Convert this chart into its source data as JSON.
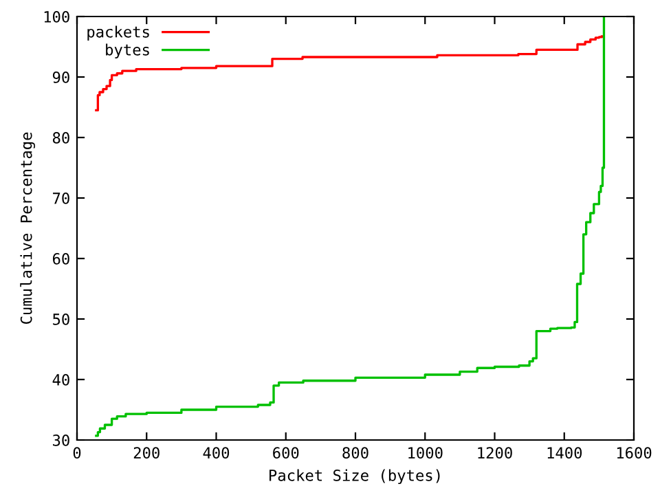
{
  "chart_data": {
    "type": "step",
    "xlabel": "Packet Size (bytes)",
    "ylabel": "Cumulative Percentage",
    "xlim": [
      0,
      1600
    ],
    "ylim": [
      30,
      100
    ],
    "xticks": [
      0,
      200,
      400,
      600,
      800,
      1000,
      1200,
      1400,
      1600
    ],
    "yticks": [
      30,
      40,
      50,
      60,
      70,
      80,
      90,
      100
    ],
    "legend": "top left",
    "grid": false,
    "series": [
      {
        "name": "packets",
        "color": "#ff0000",
        "x": [
          55,
          60,
          65,
          75,
          85,
          95,
          100,
          115,
          130,
          170,
          300,
          400,
          561,
          648,
          1035,
          1268,
          1320,
          1438,
          1460,
          1475,
          1490,
          1500,
          1508
        ],
        "values": [
          84.5,
          87,
          87.5,
          88,
          88.5,
          89.5,
          90.3,
          90.6,
          91,
          91.3,
          91.5,
          91.8,
          93.0,
          93.3,
          93.6,
          93.8,
          94.5,
          95.4,
          95.8,
          96.2,
          96.5,
          96.6,
          96.7
        ]
      },
      {
        "name": "bytes",
        "color": "#00c000",
        "x": [
          55,
          60,
          66,
          80,
          100,
          115,
          140,
          200,
          300,
          400,
          520,
          555,
          565,
          580,
          650,
          800,
          1000,
          1100,
          1150,
          1200,
          1270,
          1300,
          1310,
          1320,
          1360,
          1380,
          1420,
          1430,
          1437,
          1447,
          1455,
          1463,
          1475,
          1485,
          1500,
          1505,
          1510,
          1514
        ],
        "values": [
          30.7,
          31.3,
          31.9,
          32.5,
          33.5,
          33.9,
          34.3,
          34.5,
          35,
          35.5,
          35.8,
          36.2,
          39,
          39.5,
          39.8,
          40.3,
          40.8,
          41.3,
          41.9,
          42.1,
          42.3,
          43,
          43.5,
          48.0,
          48.4,
          48.5,
          48.6,
          49.5,
          55.8,
          57.5,
          64,
          66,
          67.5,
          69,
          71,
          72,
          75,
          100
        ]
      }
    ]
  }
}
